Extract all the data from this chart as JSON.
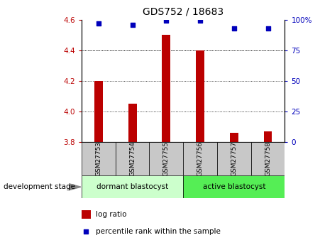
{
  "title": "GDS752 / 18683",
  "samples": [
    "GSM27753",
    "GSM27754",
    "GSM27755",
    "GSM27756",
    "GSM27757",
    "GSM27758"
  ],
  "log_ratio": [
    4.2,
    4.05,
    4.5,
    4.4,
    3.86,
    3.87
  ],
  "percentile_rank": [
    97,
    96,
    99,
    99,
    93,
    93
  ],
  "baseline": 3.8,
  "ylim_left": [
    3.8,
    4.6
  ],
  "ylim_right": [
    0,
    100
  ],
  "yticks_left": [
    3.8,
    4.0,
    4.2,
    4.4,
    4.6
  ],
  "yticks_right": [
    0,
    25,
    50,
    75,
    100
  ],
  "bar_color": "#bb0000",
  "dot_color": "#0000bb",
  "group1_label": "dormant blastocyst",
  "group2_label": "active blastocyst",
  "group1_indices": [
    0,
    1,
    2
  ],
  "group2_indices": [
    3,
    4,
    5
  ],
  "group1_color": "#ccffcc",
  "group2_color": "#55ee55",
  "tick_bg_color": "#c8c8c8",
  "legend_bar_label": "log ratio",
  "legend_dot_label": "percentile rank within the sample",
  "stage_label": "development stage",
  "title_fontsize": 10,
  "axis_fontsize": 7.5,
  "label_fontsize": 7.5
}
